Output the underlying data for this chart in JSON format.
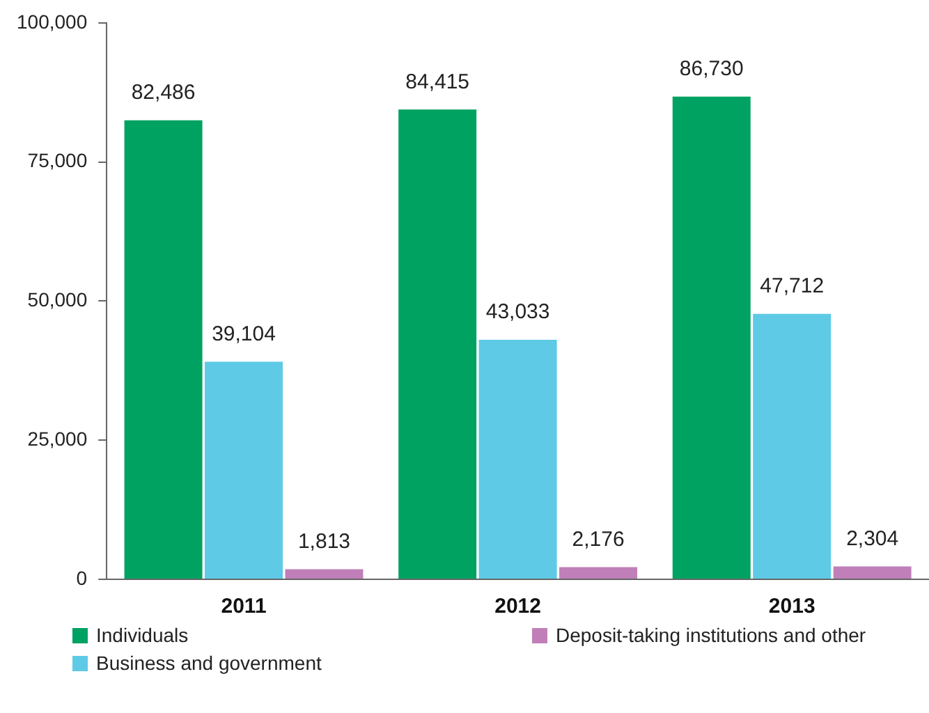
{
  "chart_data": {
    "type": "bar",
    "categories": [
      "2011",
      "2012",
      "2013"
    ],
    "series": [
      {
        "name": "Individuals",
        "color": "#00a262",
        "values": [
          82486,
          84415,
          86730
        ],
        "value_labels": [
          "82,486",
          "84,415",
          "86,730"
        ]
      },
      {
        "name": "Business and government",
        "color": "#5ecae6",
        "values": [
          39104,
          43033,
          47712
        ],
        "value_labels": [
          "39,104",
          "43,033",
          "47,712"
        ]
      },
      {
        "name": "Deposit-taking institutions and other",
        "color": "#c07fb8",
        "values": [
          1813,
          2176,
          2304
        ],
        "value_labels": [
          "1,813",
          "2,176",
          "2,304"
        ]
      }
    ],
    "ylim": [
      0,
      100000
    ],
    "yticks": [
      0,
      {
        "value": 25000,
        "label": "25,000"
      },
      {
        "value": 50000,
        "label": "50,000"
      },
      {
        "value": 75000,
        "label": "75,000"
      },
      {
        "value": 100000,
        "label": "100,000"
      }
    ],
    "grid": false,
    "legend": "bottom"
  }
}
